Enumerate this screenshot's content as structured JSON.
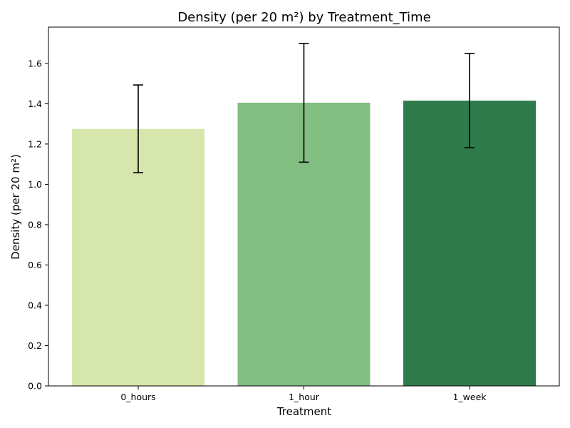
{
  "chart_data": {
    "type": "bar",
    "title": "Density (per 20 m²) by Treatment_Time",
    "xlabel": "Treatment",
    "ylabel": "Density (per 20 m²)",
    "categories": [
      "0_hours",
      "1_hour",
      "1_week"
    ],
    "values": [
      1.275,
      1.405,
      1.415
    ],
    "error_low": [
      1.058,
      1.11,
      1.182
    ],
    "error_high": [
      1.493,
      1.699,
      1.649
    ],
    "colors": [
      "#d6e6ac",
      "#82bd82",
      "#2e7a4a"
    ],
    "ylim": [
      0,
      1.78
    ],
    "yticks": [
      "0.0",
      "0.2",
      "0.4",
      "0.6",
      "0.8",
      "1.0",
      "1.2",
      "1.4",
      "1.6"
    ],
    "grid": false,
    "legend": "none"
  }
}
